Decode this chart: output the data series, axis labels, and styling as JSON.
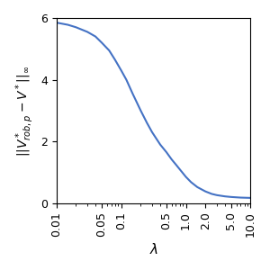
{
  "x_ticks": [
    0.01,
    0.05,
    0.1,
    0.5,
    1.0,
    2.0,
    5.0,
    10.0
  ],
  "x_tick_labels": [
    "0.01",
    "0.05",
    "0.1",
    "0.5",
    "1.0",
    "2.0",
    "5.0",
    "10.0"
  ],
  "ylim": [
    0,
    6
  ],
  "yticks": [
    0,
    2,
    4,
    6
  ],
  "xlabel": "$\\lambda$",
  "ylabel": "$||V^*_{rob,p} - V^*||_\\infty$",
  "line_color": "#4472c4",
  "curve_points_x": [
    0.01,
    0.015,
    0.02,
    0.03,
    0.04,
    0.05,
    0.065,
    0.08,
    0.1,
    0.12,
    0.15,
    0.2,
    0.25,
    0.3,
    0.4,
    0.5,
    0.6,
    0.7,
    0.8,
    1.0,
    1.2,
    1.5,
    2.0,
    2.5,
    3.0,
    4.0,
    5.0,
    7.0,
    10.0
  ],
  "curve_points_y": [
    5.85,
    5.78,
    5.7,
    5.55,
    5.4,
    5.2,
    4.95,
    4.65,
    4.3,
    4.0,
    3.55,
    3.0,
    2.6,
    2.3,
    1.9,
    1.65,
    1.42,
    1.25,
    1.1,
    0.85,
    0.68,
    0.52,
    0.38,
    0.3,
    0.26,
    0.22,
    0.2,
    0.18,
    0.17
  ],
  "figsize": [
    3.0,
    3.0
  ],
  "dpi": 100
}
